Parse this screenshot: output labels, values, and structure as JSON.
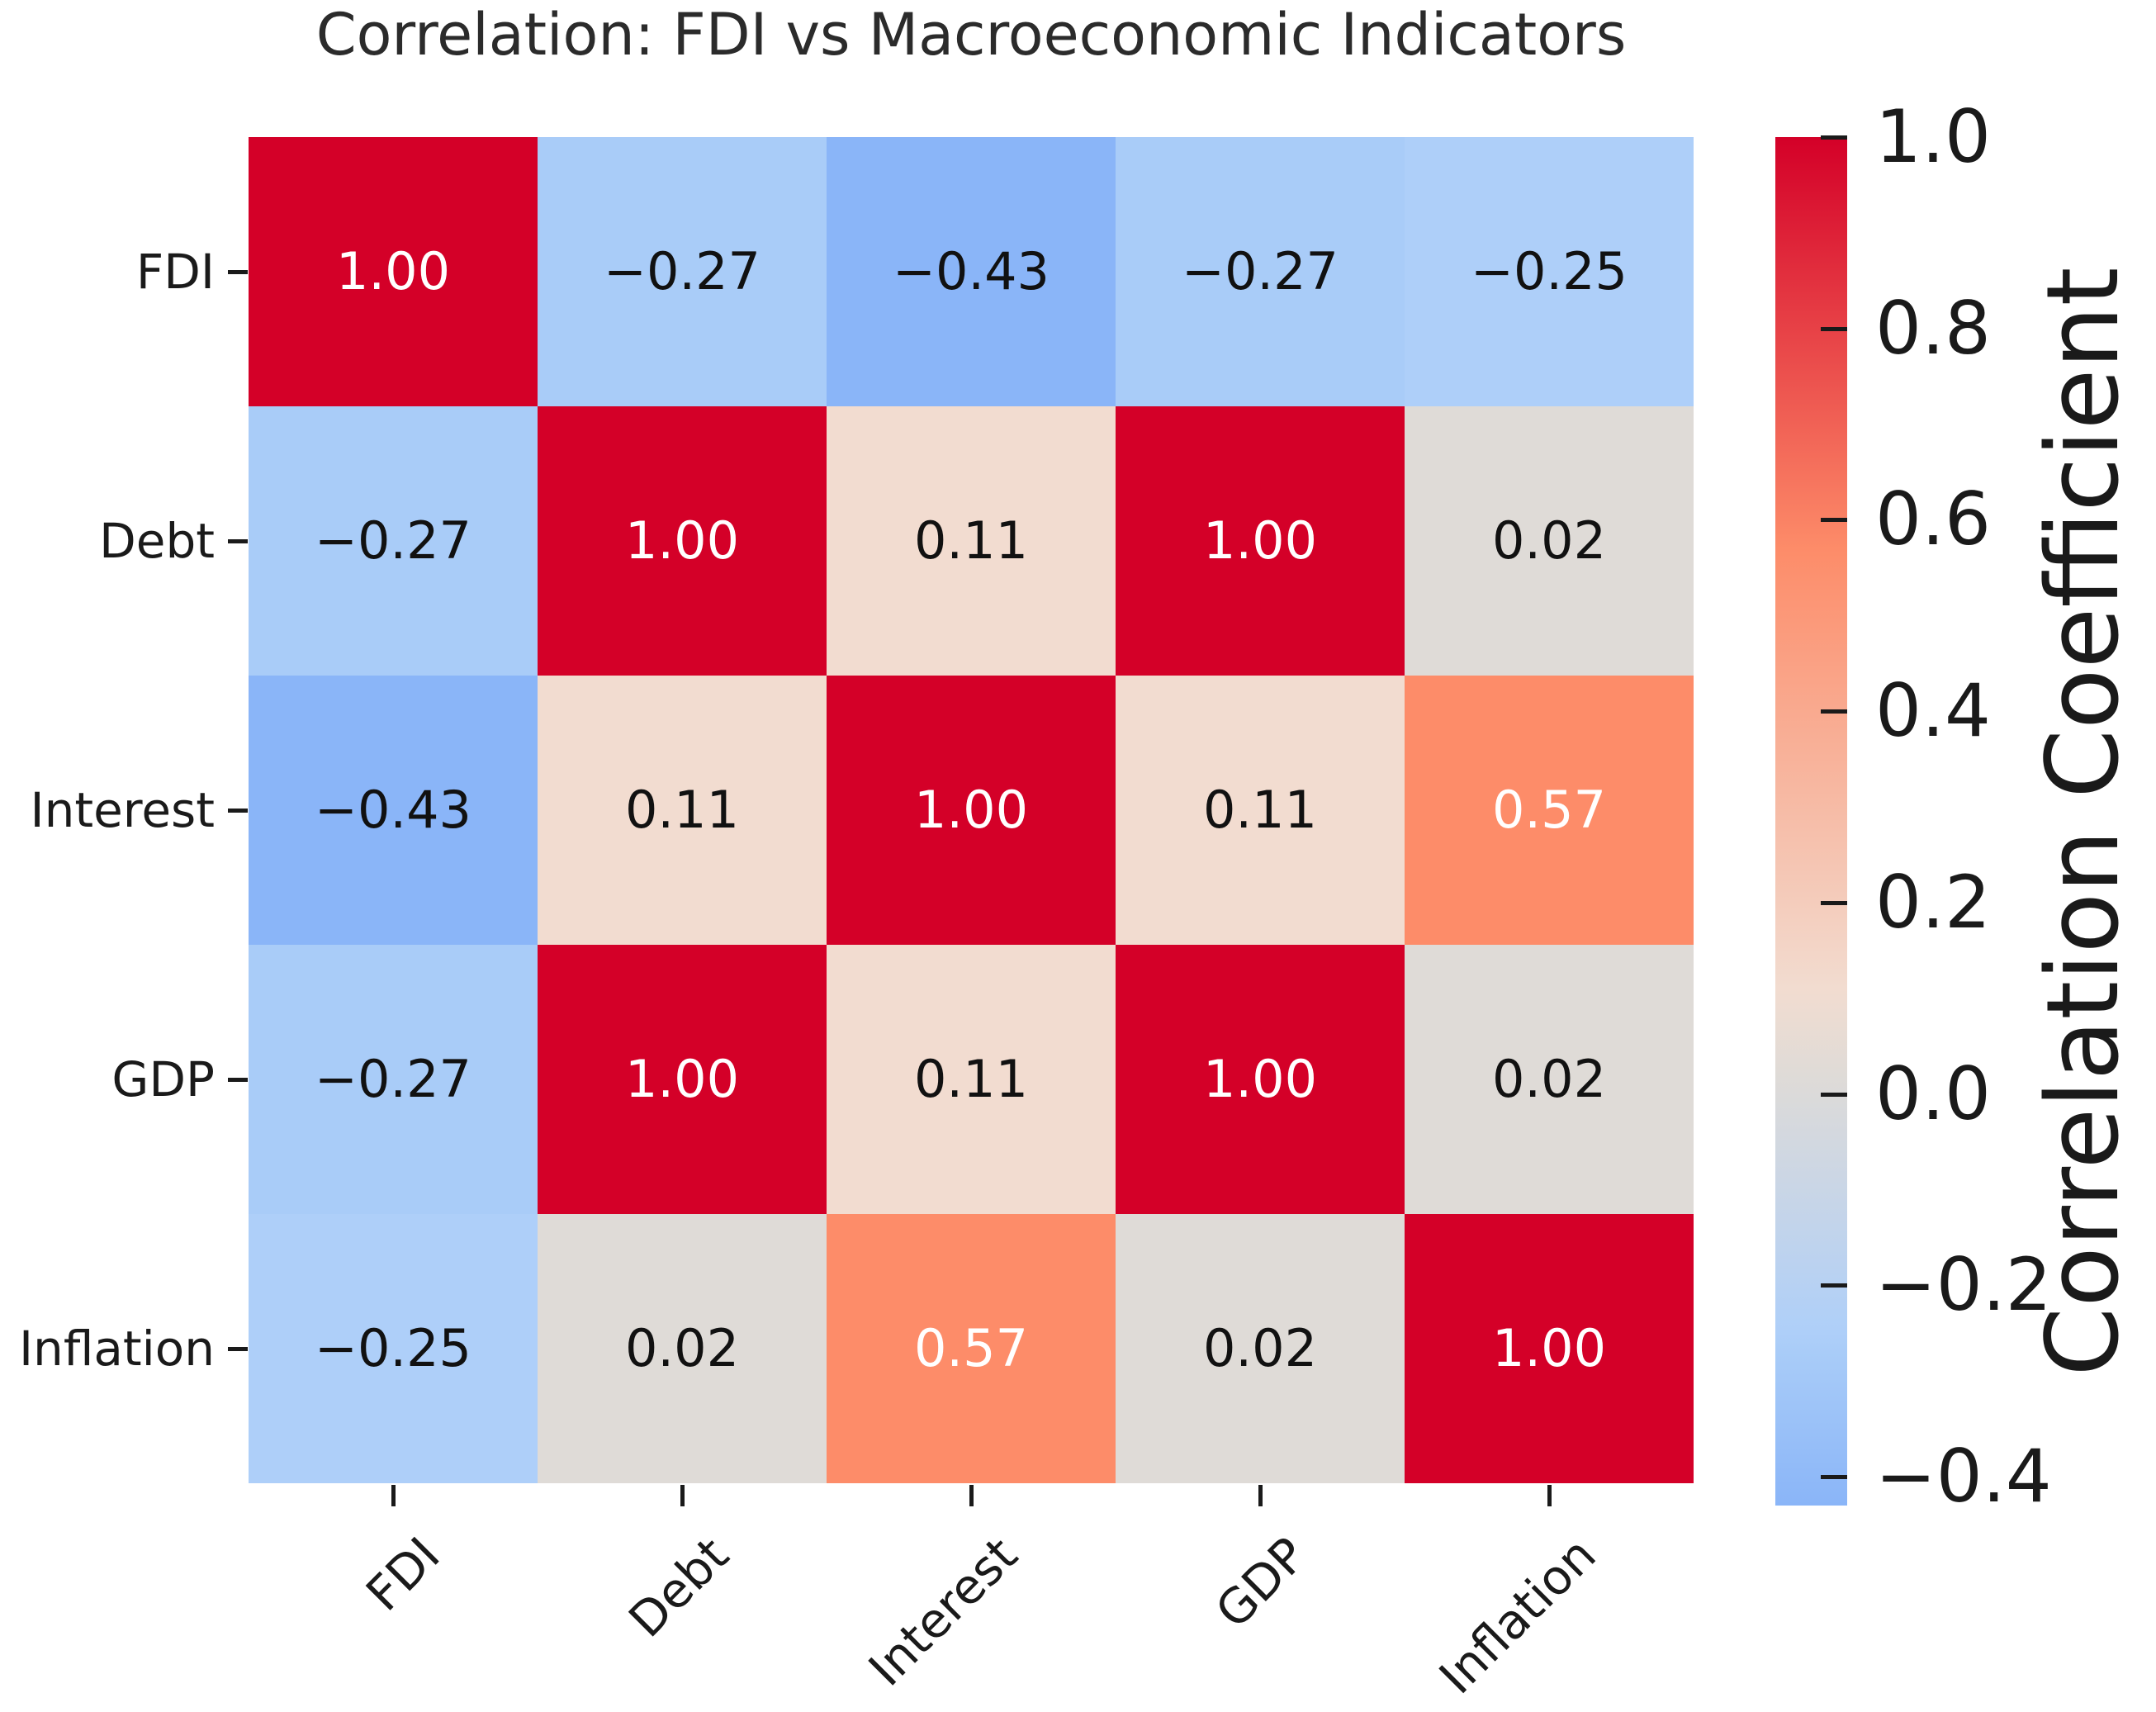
{
  "title": "Correlation: FDI vs Macroeconomic Indicators",
  "colors": {
    "background": "#ffffff",
    "title_text": "#2b2b2b",
    "axis_text": "#1a1a1a",
    "annotation_light": "#ffffff",
    "annotation_dark": "#111111",
    "strong_positive": "#d40028",
    "moderate_positive": "#fd8c69",
    "weak_positive": "#f2dcd0",
    "near_zero": "#dfdbd7",
    "weak_negative": "#a9ccf8",
    "moderate_negative": "#8ab5f8"
  },
  "chart_data": {
    "type": "heatmap",
    "title": "Correlation: FDI vs Macroeconomic Indicators",
    "x_labels": [
      "FDI",
      "Debt",
      "Interest",
      "GDP",
      "Inflation"
    ],
    "y_labels": [
      "FDI",
      "Debt",
      "Interest",
      "GDP",
      "Inflation"
    ],
    "values": [
      [
        1.0,
        -0.27,
        -0.43,
        -0.27,
        -0.25
      ],
      [
        -0.27,
        1.0,
        0.11,
        1.0,
        0.02
      ],
      [
        -0.43,
        0.11,
        1.0,
        0.11,
        0.57
      ],
      [
        -0.27,
        1.0,
        0.11,
        1.0,
        0.02
      ],
      [
        -0.25,
        0.02,
        0.57,
        0.02,
        1.0
      ]
    ],
    "cell_labels": [
      [
        "1.00",
        "−0.27",
        "−0.43",
        "−0.27",
        "−0.25"
      ],
      [
        "−0.27",
        "1.00",
        "0.11",
        "1.00",
        "0.02"
      ],
      [
        "−0.43",
        "0.11",
        "1.00",
        "0.11",
        "0.57"
      ],
      [
        "−0.27",
        "1.00",
        "0.11",
        "1.00",
        "0.02"
      ],
      [
        "−0.25",
        "0.02",
        "0.57",
        "0.02",
        "1.00"
      ]
    ],
    "cell_colors": [
      [
        "#d40028",
        "#a9ccf8",
        "#8ab5f8",
        "#a9ccf8",
        "#aecff9"
      ],
      [
        "#a9ccf8",
        "#d40028",
        "#f2dcd0",
        "#d40028",
        "#dfdbd7"
      ],
      [
        "#8ab5f8",
        "#f2dcd0",
        "#d40028",
        "#f2dcd0",
        "#fd8c69"
      ],
      [
        "#a9ccf8",
        "#d40028",
        "#f2dcd0",
        "#d40028",
        "#dfdbd7"
      ],
      [
        "#aecff9",
        "#dfdbd7",
        "#fd8c69",
        "#dfdbd7",
        "#d40028"
      ]
    ],
    "cell_text_colors": [
      [
        "#ffffff",
        "#111111",
        "#111111",
        "#111111",
        "#111111"
      ],
      [
        "#111111",
        "#ffffff",
        "#111111",
        "#ffffff",
        "#111111"
      ],
      [
        "#111111",
        "#111111",
        "#ffffff",
        "#111111",
        "#ffffff"
      ],
      [
        "#111111",
        "#ffffff",
        "#111111",
        "#ffffff",
        "#111111"
      ],
      [
        "#111111",
        "#111111",
        "#ffffff",
        "#111111",
        "#ffffff"
      ]
    ],
    "colorbar": {
      "label": "Correlation Coefficient",
      "tick_labels": [
        "1.0",
        "0.8",
        "0.6",
        "0.4",
        "0.2",
        "0.0",
        "−0.2",
        "−0.4"
      ],
      "tick_values": [
        1.0,
        0.8,
        0.6,
        0.4,
        0.2,
        0.0,
        -0.2,
        -0.4
      ],
      "vmin": -0.43,
      "vmax": 1.0,
      "gradient_stops": [
        [
          "0%",
          "#d40028"
        ],
        [
          "30.1%",
          "#fd8c69"
        ],
        [
          "62.2%",
          "#f2dcd0"
        ],
        [
          "68.5%",
          "#dfdbd7"
        ],
        [
          "87.4%",
          "#aecff9"
        ],
        [
          "88.8%",
          "#a9ccf8"
        ],
        [
          "100%",
          "#8ab5f8"
        ]
      ],
      "legend_position": "right"
    },
    "grid": false,
    "annotated": true
  }
}
